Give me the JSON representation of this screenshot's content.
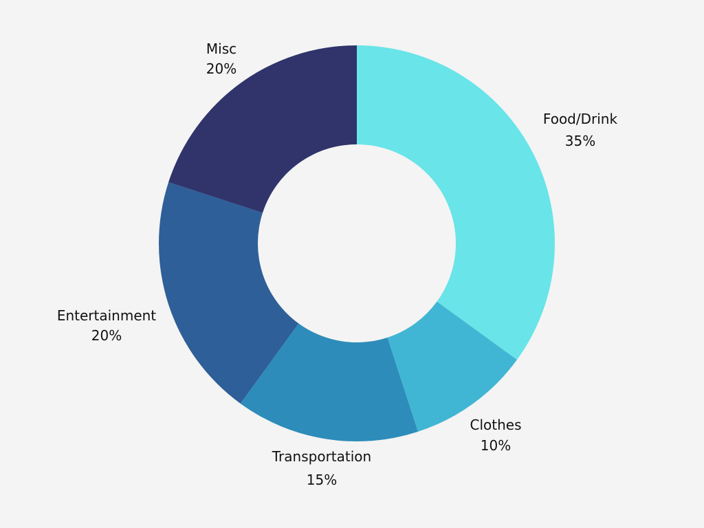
{
  "chart_data": {
    "type": "pie",
    "variant": "donut",
    "title": "",
    "slices": [
      {
        "label": "Food/Drink",
        "value": 35,
        "value_label": "35%",
        "color": "#69e4e8"
      },
      {
        "label": "Clothes",
        "value": 10,
        "value_label": "10%",
        "color": "#41b6d4"
      },
      {
        "label": "Transportation",
        "value": 15,
        "value_label": "15%",
        "color": "#2d8cba"
      },
      {
        "label": "Entertainment",
        "value": 20,
        "value_label": "20%",
        "color": "#2e5f98"
      },
      {
        "label": "Misc",
        "value": 20,
        "value_label": "20%",
        "color": "#30346b"
      }
    ],
    "legend": "none",
    "labels_outside": true
  }
}
